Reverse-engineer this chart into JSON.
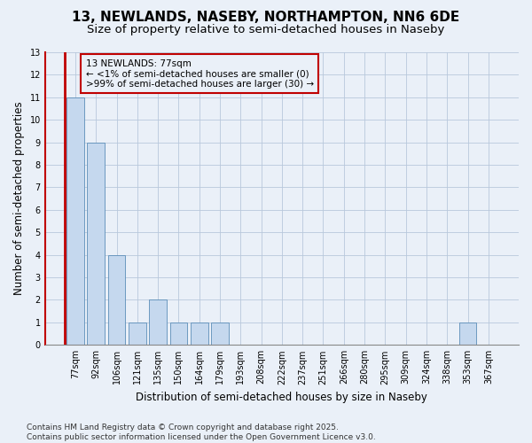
{
  "title": "13, NEWLANDS, NASEBY, NORTHAMPTON, NN6 6DE",
  "subtitle": "Size of property relative to semi-detached houses in Naseby",
  "xlabel": "Distribution of semi-detached houses by size in Naseby",
  "ylabel": "Number of semi-detached properties",
  "categories": [
    "77sqm",
    "92sqm",
    "106sqm",
    "121sqm",
    "135sqm",
    "150sqm",
    "164sqm",
    "179sqm",
    "193sqm",
    "208sqm",
    "222sqm",
    "237sqm",
    "251sqm",
    "266sqm",
    "280sqm",
    "295sqm",
    "309sqm",
    "324sqm",
    "338sqm",
    "353sqm",
    "367sqm"
  ],
  "values": [
    11,
    9,
    4,
    1,
    2,
    1,
    1,
    1,
    0,
    0,
    0,
    0,
    0,
    0,
    0,
    0,
    0,
    0,
    0,
    1,
    0
  ],
  "bar_color": "#c5d8ee",
  "bar_edge_color": "#5b8db8",
  "highlight_color": "#c00000",
  "annotation_box_text": "13 NEWLANDS: 77sqm\n← <1% of semi-detached houses are smaller (0)\n>99% of semi-detached houses are larger (30) →",
  "annotation_box_color": "#c00000",
  "ylim": [
    0,
    13
  ],
  "yticks": [
    0,
    1,
    2,
    3,
    4,
    5,
    6,
    7,
    8,
    9,
    10,
    11,
    12,
    13
  ],
  "footer_line1": "Contains HM Land Registry data © Crown copyright and database right 2025.",
  "footer_line2": "Contains public sector information licensed under the Open Government Licence v3.0.",
  "bg_color": "#eaf0f8",
  "grid_color": "#b8c8dc",
  "title_fontsize": 11,
  "subtitle_fontsize": 9.5,
  "axis_label_fontsize": 8.5,
  "tick_fontsize": 7,
  "footer_fontsize": 6.5,
  "annotation_fontsize": 7.5
}
